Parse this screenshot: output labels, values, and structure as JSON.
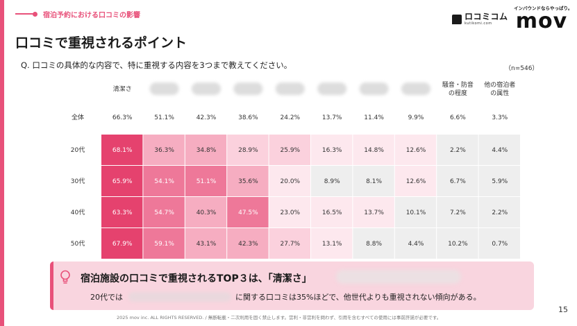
{
  "breadcrumb": "宿泊予約における口コミの影響",
  "logos": {
    "kuchikomi_brand": "ロコミコム",
    "kuchikomi_sub": "kutikomi.com",
    "mov_tagline": "インバウンドならやっぱり。",
    "mov_wordmark": "mov"
  },
  "page_title": "口コミで重視されるポイント",
  "question": "Q. 口コミの具体的な内容で、特に重視する内容を3つまで教えてください。",
  "sample_size": "（n=546）",
  "chart_data": {
    "type": "heatmap",
    "columns": [
      {
        "label": "清潔さ",
        "blurred": false
      },
      {
        "label": "",
        "blurred": true
      },
      {
        "label": "",
        "blurred": true
      },
      {
        "label": "",
        "blurred": true
      },
      {
        "label": "",
        "blurred": true
      },
      {
        "label": "",
        "blurred": true
      },
      {
        "label": "",
        "blurred": true
      },
      {
        "label": "",
        "blurred": true
      },
      {
        "label": "騒音・防音\nの程度",
        "blurred": false
      },
      {
        "label": "他の宿泊者\nの属性",
        "blurred": false
      }
    ],
    "rows": [
      {
        "label": "全体",
        "values": [
          66.3,
          51.1,
          42.3,
          38.6,
          24.2,
          13.7,
          11.4,
          9.9,
          6.6,
          3.3
        ]
      },
      {
        "label": "20代",
        "values": [
          68.1,
          36.3,
          34.8,
          28.9,
          25.9,
          16.3,
          14.8,
          12.6,
          2.2,
          4.4
        ]
      },
      {
        "label": "30代",
        "values": [
          65.9,
          54.1,
          51.1,
          35.6,
          20.0,
          8.9,
          8.1,
          12.6,
          6.7,
          5.9
        ]
      },
      {
        "label": "40代",
        "values": [
          63.3,
          54.7,
          40.3,
          47.5,
          23.0,
          16.5,
          13.7,
          10.1,
          7.2,
          2.2
        ]
      },
      {
        "label": "50代",
        "values": [
          67.9,
          59.1,
          43.1,
          42.3,
          27.7,
          13.1,
          8.8,
          4.4,
          10.2,
          0.7
        ]
      }
    ],
    "value_format": "percent_1dp",
    "colors": {
      "level5": "#e5426e",
      "level4": "#ee7899",
      "level3": "#f6adc1",
      "level2": "#fbd1dd",
      "level1": "#fde8ee",
      "level0": "#eeeeee",
      "dark_text": "#333333",
      "light_text": "#ffffff"
    }
  },
  "callout": {
    "headline": "宿泊施設の口コミで重視されるTOP３は、「清潔さ」",
    "body_prefix": "20代では",
    "body_suffix": "に関する口コミは35%ほどで、他世代よりも重視されない傾向がある。"
  },
  "footer": {
    "copyright": "2025 mov inc. ALL RIGHTS RESERVED. / 無断転載・二次利用を固く禁止します。営利・非営利を問わず、引用を含むすべての使用には事前許諾が必要です。",
    "page_number": "15"
  },
  "theme": {
    "accent": "#e8517a",
    "callout_bg": "#f9d5df"
  }
}
